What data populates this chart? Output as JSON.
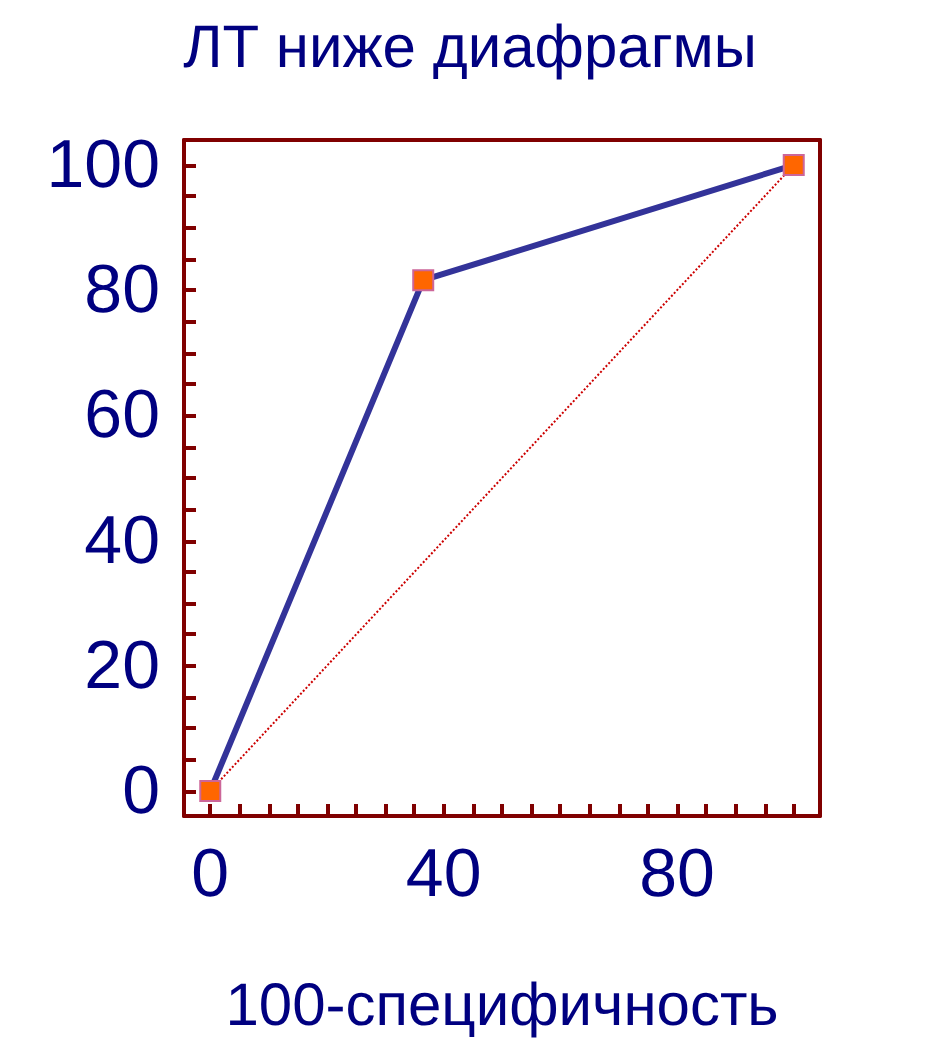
{
  "chart_data": {
    "type": "line",
    "title": "ЛТ ниже диафрагмы",
    "xlabel": "100-специфичность",
    "series": [
      {
        "color": "#333399",
        "x": [
          0,
          36.5,
          100
        ],
        "values": [
          0,
          81.6,
          100
        ],
        "marker": "square"
      },
      {
        "type": "line",
        "color": "#cc0000",
        "x": [
          0,
          100
        ],
        "values": [
          0,
          100
        ],
        "line_style": "dotted",
        "marker": "none"
      }
    ],
    "xlim": [
      -4.5,
      104.5
    ],
    "ylim": [
      -4,
      104
    ],
    "xticks": [
      0,
      {
        "value": 5,
        "label": null
      },
      {
        "value": 10,
        "label": null
      },
      {
        "value": 15,
        "label": null
      },
      {
        "value": 20,
        "label": null
      },
      {
        "value": 25,
        "label": null
      },
      {
        "value": 30,
        "label": null
      },
      {
        "value": 35,
        "label": null
      },
      40,
      {
        "value": 45,
        "label": null
      },
      {
        "value": 50,
        "label": null
      },
      {
        "value": 55,
        "label": null
      },
      {
        "value": 60,
        "label": null
      },
      {
        "value": 65,
        "label": null
      },
      {
        "value": 70,
        "label": null
      },
      {
        "value": 75,
        "label": null
      },
      80,
      {
        "value": 85,
        "label": null
      },
      {
        "value": 90,
        "label": null
      },
      {
        "value": 95,
        "label": null
      },
      {
        "value": 100,
        "label": null
      }
    ],
    "yticks": [
      0,
      {
        "value": 5,
        "label": null
      },
      {
        "value": 10,
        "label": null
      },
      {
        "value": 15,
        "label": null
      },
      20,
      {
        "value": 25,
        "label": null
      },
      {
        "value": 30,
        "label": null
      },
      {
        "value": 35,
        "label": null
      },
      40,
      {
        "value": 45,
        "label": null
      },
      {
        "value": 50,
        "label": null
      },
      {
        "value": 55,
        "label": null
      },
      60,
      {
        "value": 65,
        "label": null
      },
      {
        "value": 70,
        "label": null
      },
      {
        "value": 75,
        "label": null
      },
      80,
      {
        "value": 85,
        "label": null
      },
      {
        "value": 90,
        "label": null
      },
      {
        "value": 95,
        "label": null
      },
      100
    ],
    "grid": false
  }
}
